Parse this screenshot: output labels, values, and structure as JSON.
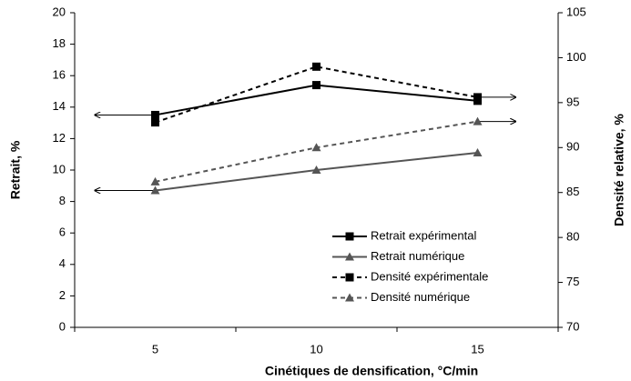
{
  "chart_data": {
    "type": "line",
    "x_label": "Cinétiques de densification, °C/min",
    "y_label": "Retrait, %",
    "y2_label": "Densité relative, %",
    "categories": [
      "5",
      "10",
      "15"
    ],
    "ylim": [
      0,
      20
    ],
    "yticks": [
      0,
      2,
      4,
      6,
      8,
      10,
      12,
      14,
      16,
      18,
      20
    ],
    "y2lim": [
      70,
      105
    ],
    "y2ticks": [
      70,
      75,
      80,
      85,
      90,
      95,
      100,
      105
    ],
    "legend": "lower-right",
    "series": [
      {
        "name": "Retrait expérimental",
        "color": "#000000",
        "marker": "square",
        "dashed": false,
        "values": [
          13.5,
          15.4,
          14.4
        ]
      },
      {
        "name": "Retrait numérique",
        "color": "#555555",
        "marker": "triangle",
        "dashed": false,
        "values": [
          8.7,
          10.0,
          11.1
        ]
      },
      {
        "name": "Densité expérimentale",
        "color": "#000000",
        "marker": "square",
        "dashed": true,
        "axis": "y2",
        "values": [
          92.8,
          99.0,
          95.6
        ]
      },
      {
        "name": "Densité numérique",
        "color": "#555555",
        "marker": "triangle",
        "dashed": true,
        "axis": "y2",
        "values": [
          86.2,
          90.0,
          92.9
        ]
      }
    ]
  }
}
